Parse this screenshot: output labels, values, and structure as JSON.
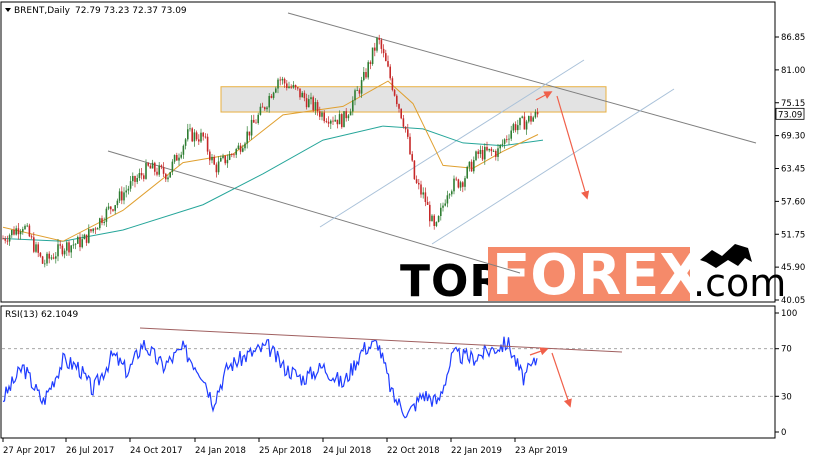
{
  "chart_data": [
    {
      "type": "candlestick",
      "header": {
        "symbol": "BRENT,Daily",
        "ohlc": "72.79 73.23 72.37 73.09"
      },
      "yticks": [
        86.85,
        81.0,
        75.15,
        69.3,
        63.45,
        57.6,
        51.75,
        45.9,
        40.05
      ],
      "ylim": [
        40.05,
        90.5
      ],
      "last_price": "73.09",
      "x_dates": [
        "27 Apr 2017",
        "26 Jul 2017",
        "24 Oct 2017",
        "24 Jan 2018",
        "25 Apr 2018",
        "24 Jul 2018",
        "22 Oct 2018",
        "22 Jan 2019",
        "23 Apr 2019"
      ],
      "price_path": [
        {
          "x": 0,
          "y": 51.0
        },
        {
          "x": 20,
          "y": 53.5
        },
        {
          "x": 40,
          "y": 46.5
        },
        {
          "x": 60,
          "y": 49.5
        },
        {
          "x": 80,
          "y": 50.5
        },
        {
          "x": 100,
          "y": 55.0
        },
        {
          "x": 125,
          "y": 60.0
        },
        {
          "x": 145,
          "y": 63.5
        },
        {
          "x": 165,
          "y": 62.5
        },
        {
          "x": 185,
          "y": 69.5
        },
        {
          "x": 200,
          "y": 69.0
        },
        {
          "x": 212,
          "y": 63.5
        },
        {
          "x": 235,
          "y": 67.0
        },
        {
          "x": 260,
          "y": 74.0
        },
        {
          "x": 275,
          "y": 79.5
        },
        {
          "x": 295,
          "y": 77.0
        },
        {
          "x": 320,
          "y": 73.0
        },
        {
          "x": 340,
          "y": 72.0
        },
        {
          "x": 360,
          "y": 79.0
        },
        {
          "x": 375,
          "y": 86.5
        },
        {
          "x": 390,
          "y": 78.0
        },
        {
          "x": 402,
          "y": 71.0
        },
        {
          "x": 412,
          "y": 61.0
        },
        {
          "x": 422,
          "y": 58.0
        },
        {
          "x": 432,
          "y": 52.0
        },
        {
          "x": 445,
          "y": 60.0
        },
        {
          "x": 460,
          "y": 61.5
        },
        {
          "x": 475,
          "y": 66.0
        },
        {
          "x": 495,
          "y": 66.5
        },
        {
          "x": 510,
          "y": 71.0
        },
        {
          "x": 520,
          "y": 71.5
        },
        {
          "x": 535,
          "y": 73.09
        }
      ],
      "ma_fast": [
        {
          "x": 0,
          "y": 53.0
        },
        {
          "x": 60,
          "y": 50.5
        },
        {
          "x": 120,
          "y": 56.0
        },
        {
          "x": 180,
          "y": 64.5
        },
        {
          "x": 230,
          "y": 66.0
        },
        {
          "x": 280,
          "y": 73.0
        },
        {
          "x": 340,
          "y": 74.5
        },
        {
          "x": 385,
          "y": 79.0
        },
        {
          "x": 410,
          "y": 75.0
        },
        {
          "x": 440,
          "y": 64.0
        },
        {
          "x": 470,
          "y": 63.5
        },
        {
          "x": 500,
          "y": 66.5
        },
        {
          "x": 535,
          "y": 69.5
        }
      ],
      "ma_slow": [
        {
          "x": 0,
          "y": 51.0
        },
        {
          "x": 60,
          "y": 50.5
        },
        {
          "x": 120,
          "y": 52.5
        },
        {
          "x": 200,
          "y": 57.0
        },
        {
          "x": 260,
          "y": 62.5
        },
        {
          "x": 320,
          "y": 68.5
        },
        {
          "x": 380,
          "y": 71.0
        },
        {
          "x": 420,
          "y": 70.5
        },
        {
          "x": 460,
          "y": 68.0
        },
        {
          "x": 500,
          "y": 67.5
        },
        {
          "x": 540,
          "y": 68.5
        }
      ],
      "resistance_zone": {
        "low": 73.5,
        "high": 78.0
      },
      "colors": {
        "bull": "#2e7d32",
        "bear": "#c62828",
        "ma_fast": "#e0a030",
        "ma_slow": "#26a69a",
        "zone": "#d9d9d9",
        "arrow": "#f0604a",
        "line": "#7f7f7f",
        "channel": "#a9c1d9"
      }
    },
    {
      "type": "line",
      "title": "RSI(13) 62.1049",
      "yticks": [
        100,
        70,
        30,
        0
      ],
      "ylim": [
        0,
        100
      ],
      "levels": [
        70,
        30
      ],
      "rsi_path": [
        {
          "x": 0,
          "y": 28
        },
        {
          "x": 20,
          "y": 55
        },
        {
          "x": 40,
          "y": 25
        },
        {
          "x": 60,
          "y": 60
        },
        {
          "x": 75,
          "y": 55
        },
        {
          "x": 90,
          "y": 35
        },
        {
          "x": 110,
          "y": 65
        },
        {
          "x": 125,
          "y": 50
        },
        {
          "x": 140,
          "y": 75
        },
        {
          "x": 160,
          "y": 55
        },
        {
          "x": 180,
          "y": 70
        },
        {
          "x": 200,
          "y": 48
        },
        {
          "x": 210,
          "y": 25
        },
        {
          "x": 225,
          "y": 55
        },
        {
          "x": 245,
          "y": 65
        },
        {
          "x": 265,
          "y": 72
        },
        {
          "x": 280,
          "y": 55
        },
        {
          "x": 300,
          "y": 45
        },
        {
          "x": 320,
          "y": 55
        },
        {
          "x": 340,
          "y": 40
        },
        {
          "x": 360,
          "y": 70
        },
        {
          "x": 375,
          "y": 75
        },
        {
          "x": 390,
          "y": 30
        },
        {
          "x": 405,
          "y": 15
        },
        {
          "x": 420,
          "y": 32
        },
        {
          "x": 435,
          "y": 25
        },
        {
          "x": 450,
          "y": 65
        },
        {
          "x": 470,
          "y": 62
        },
        {
          "x": 490,
          "y": 70
        },
        {
          "x": 505,
          "y": 75
        },
        {
          "x": 520,
          "y": 45
        },
        {
          "x": 535,
          "y": 62
        }
      ]
    }
  ]
}
